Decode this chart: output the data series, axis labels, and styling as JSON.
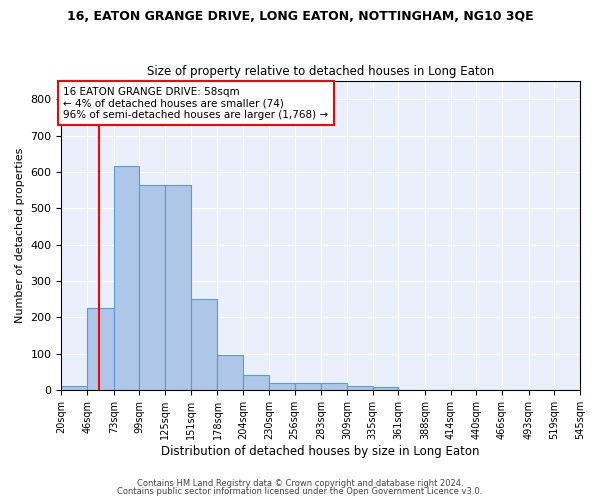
{
  "title": "16, EATON GRANGE DRIVE, LONG EATON, NOTTINGHAM, NG10 3QE",
  "subtitle": "Size of property relative to detached houses in Long Eaton",
  "xlabel": "Distribution of detached houses by size in Long Eaton",
  "ylabel": "Number of detached properties",
  "bar_color": "#aec6e8",
  "bar_edge_color": "#5b9bd5",
  "background_color": "#eaf0fb",
  "grid_color": "#ffffff",
  "annotation_line1": "16 EATON GRANGE DRIVE: 58sqm",
  "annotation_line2": "← 4% of detached houses are smaller (74)",
  "annotation_line3": "96% of semi-detached houses are larger (1,768) →",
  "red_line_x": 58,
  "footer_line1": "Contains HM Land Registry data © Crown copyright and database right 2024.",
  "footer_line2": "Contains public sector information licensed under the Open Government Licence v3.0.",
  "bin_edges": [
    20,
    46,
    73,
    99,
    125,
    151,
    178,
    204,
    230,
    256,
    283,
    309,
    335,
    361,
    388,
    414,
    440,
    466,
    493,
    519,
    545
  ],
  "bar_heights": [
    10,
    225,
    615,
    565,
    565,
    250,
    96,
    42,
    20,
    20,
    20,
    10,
    7,
    0,
    0,
    0,
    0,
    0,
    0,
    0
  ],
  "ylim": [
    0,
    850
  ],
  "yticks": [
    0,
    100,
    200,
    300,
    400,
    500,
    600,
    700,
    800
  ]
}
